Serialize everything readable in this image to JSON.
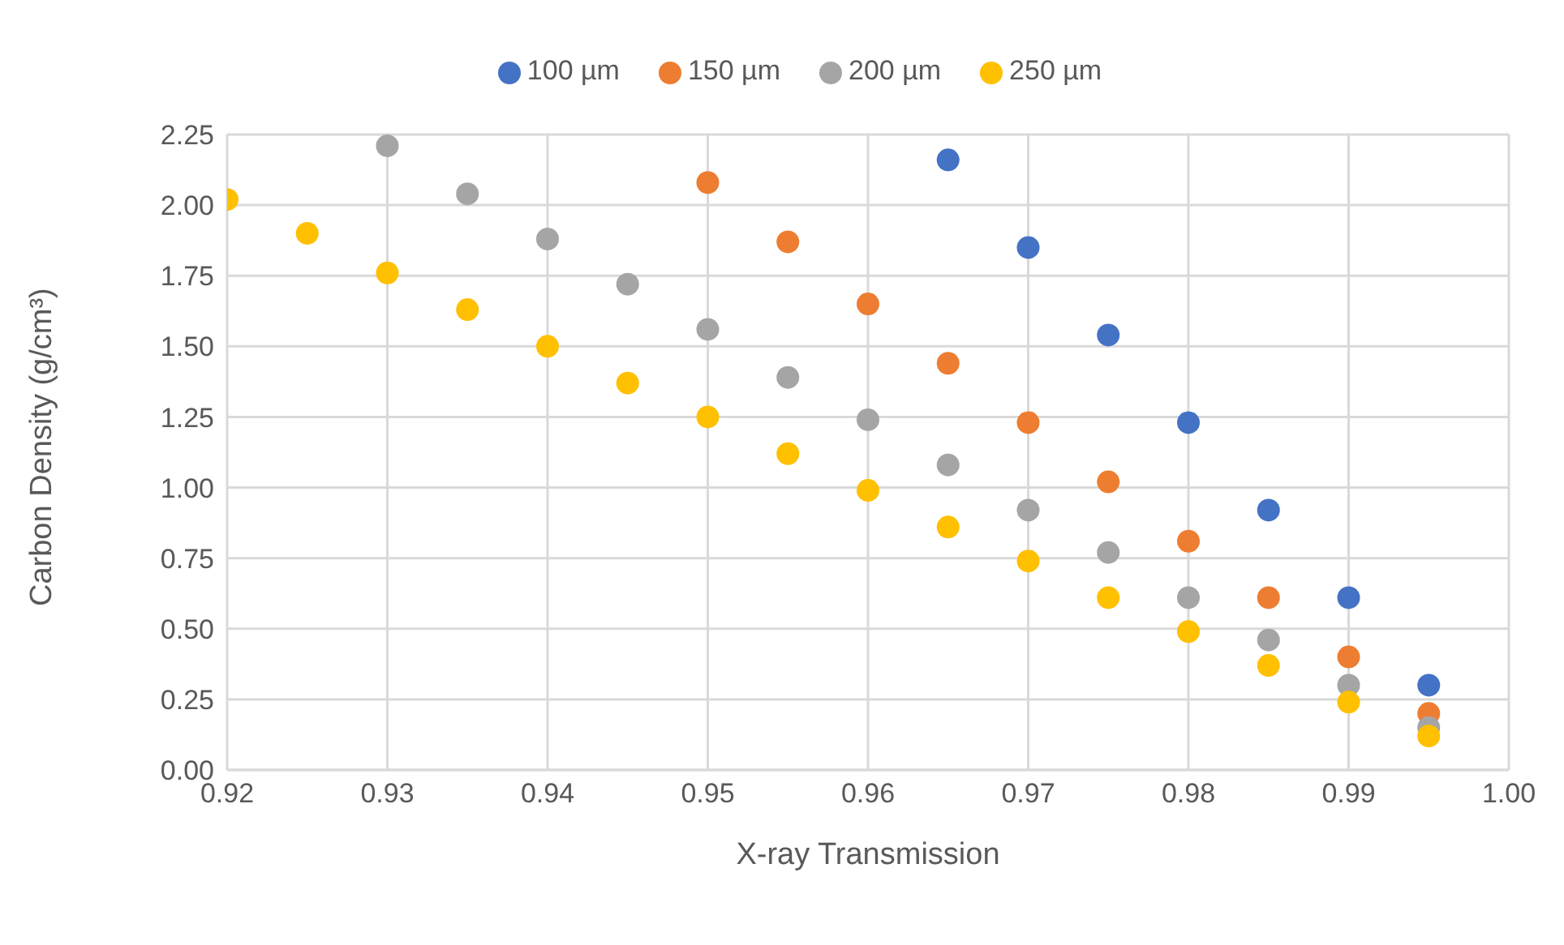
{
  "chart_data": {
    "type": "scatter",
    "xlabel": "X-ray Transmission",
    "ylabel": "Carbon Density (g/cm³)",
    "series": [
      {
        "name": "100 µm",
        "color": "#4472c4",
        "x": [
          0.965,
          0.97,
          0.975,
          0.98,
          0.985,
          0.99,
          0.995
        ],
        "values": [
          2.16,
          1.85,
          1.54,
          1.23,
          0.92,
          0.61,
          0.3
        ]
      },
      {
        "name": "150 µm",
        "color": "#ed7d31",
        "x": [
          0.95,
          0.955,
          0.96,
          0.965,
          0.97,
          0.975,
          0.98,
          0.985,
          0.99,
          0.995
        ],
        "values": [
          2.08,
          1.87,
          1.65,
          1.44,
          1.23,
          1.02,
          0.81,
          0.61,
          0.4,
          0.2
        ]
      },
      {
        "name": "200 µm",
        "color": "#a5a5a5",
        "x": [
          0.93,
          0.935,
          0.94,
          0.945,
          0.95,
          0.955,
          0.96,
          0.965,
          0.97,
          0.975,
          0.98,
          0.985,
          0.99,
          0.995
        ],
        "values": [
          2.21,
          2.04,
          1.88,
          1.72,
          1.56,
          1.39,
          1.24,
          1.08,
          0.92,
          0.77,
          0.61,
          0.46,
          0.3,
          0.15
        ]
      },
      {
        "name": "250 µm",
        "color": "#ffc000",
        "x": [
          0.92,
          0.925,
          0.93,
          0.935,
          0.94,
          0.945,
          0.95,
          0.955,
          0.96,
          0.965,
          0.97,
          0.975,
          0.98,
          0.985,
          0.99,
          0.995
        ],
        "values": [
          2.02,
          1.9,
          1.76,
          1.63,
          1.5,
          1.37,
          1.25,
          1.12,
          0.99,
          0.86,
          0.74,
          0.61,
          0.49,
          0.37,
          0.24,
          0.12
        ]
      }
    ],
    "xlim": [
      0.92,
      1.0
    ],
    "xticks": [
      0.92,
      0.93,
      0.94,
      0.95,
      0.96,
      0.97,
      0.98,
      0.99,
      {
        "value": 1.0,
        "label": "1.00"
      }
    ],
    "ylim": [
      0,
      2.25
    ],
    "yticks": [
      {
        "value": 0,
        "label": "0.00"
      },
      0.25,
      {
        "value": 0.5,
        "label": "0.50"
      },
      0.75,
      {
        "value": 1.0,
        "label": "1.00"
      },
      1.25,
      {
        "value": 1.5,
        "label": "1.50"
      },
      1.75,
      {
        "value": 2.0,
        "label": "2.00"
      },
      2.25
    ],
    "grid": true,
    "legend": "top",
    "marker": "circle"
  }
}
